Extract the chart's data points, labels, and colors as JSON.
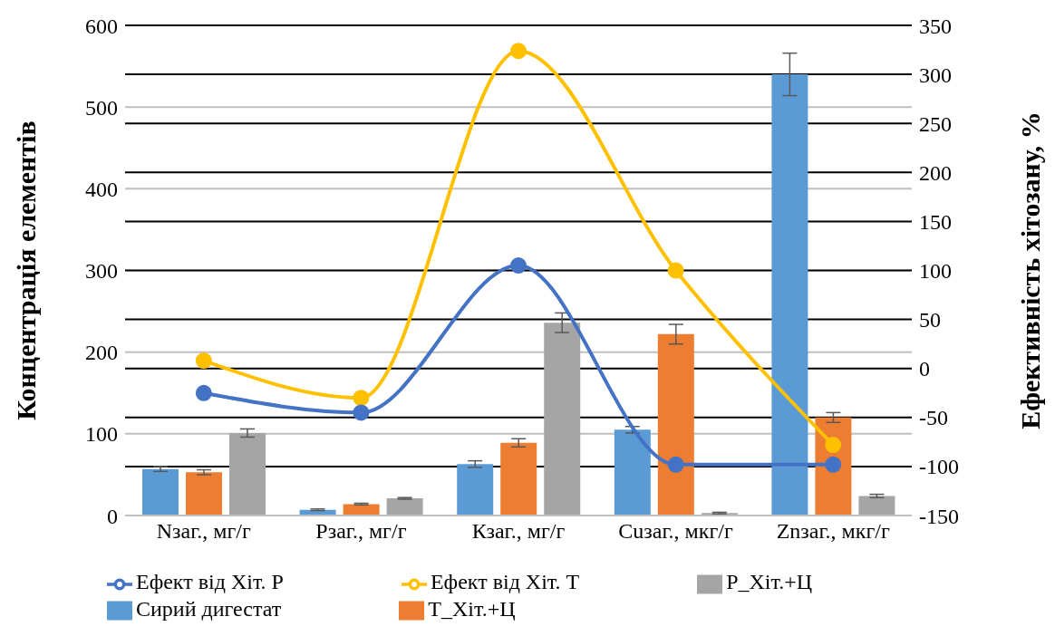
{
  "chart_data": {
    "type": "bar",
    "categories": [
      "Nзаг., мг/г",
      "Рзаг., мг/г",
      "Кзаг., мг/г",
      "Cuзаг., мкг/г",
      "Znзаг., мкг/г"
    ],
    "ylabel": "Концентрація елементів",
    "y2label": "Ефективність хітозану, %",
    "series": [
      {
        "name": "Сирий дигестат",
        "color": "#5b9bd5",
        "values": [
          57,
          7,
          63,
          105,
          540
        ],
        "errors": [
          3,
          1,
          4,
          4,
          26
        ]
      },
      {
        "name": "Т_Хіт.+Ц",
        "color": "#ed7d31",
        "values": [
          53,
          14,
          89,
          222,
          120
        ],
        "errors": [
          3,
          1,
          5,
          12,
          6
        ]
      },
      {
        "name": "Р_Хіт.+Ц",
        "color": "#a5a5a5",
        "values": [
          101,
          21,
          236,
          3,
          24
        ],
        "errors": [
          5,
          1,
          12,
          1,
          2
        ]
      },
      {
        "name": "Ефект від Хіт.  Т",
        "type": "line",
        "axis": "y2",
        "color": "#ffc000",
        "values": [
          8,
          -30,
          324,
          100,
          -78
        ]
      },
      {
        "name": "Ефект від Хіт.  Р",
        "type": "line",
        "axis": "y2",
        "color": "#4472c4",
        "values": [
          -25,
          -45,
          105,
          -98,
          -98
        ]
      }
    ],
    "ylim": [
      0,
      600
    ],
    "yticks": [
      0,
      100,
      200,
      300,
      400,
      500,
      600
    ],
    "y2lim": [
      -150,
      350
    ],
    "y2ticks": [
      -150,
      -100,
      -50,
      0,
      50,
      100,
      150,
      200,
      250,
      300,
      350
    ],
    "grid": true,
    "legend": "bottom",
    "marker": "circle"
  }
}
